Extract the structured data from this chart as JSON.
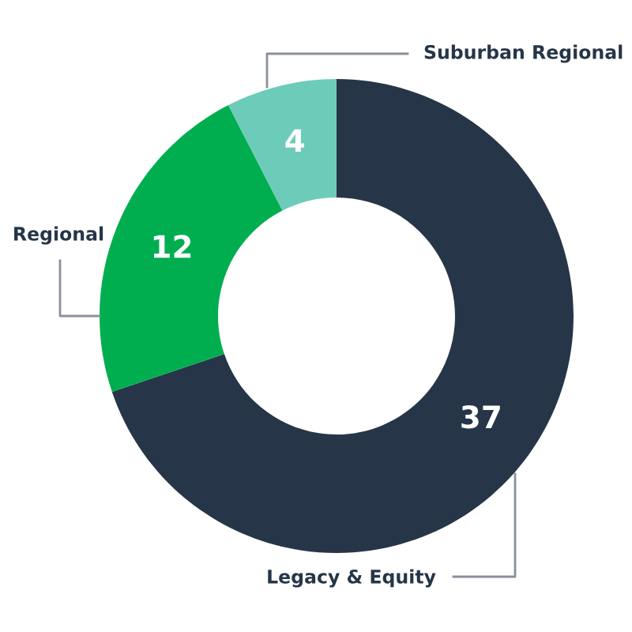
{
  "chart_data": {
    "type": "donut",
    "categories": [
      "Legacy & Equity",
      "Regional",
      "Suburban Regional"
    ],
    "values": [
      37,
      12,
      4
    ],
    "colors": [
      "#263648",
      "#00ae50",
      "#6dcbba"
    ],
    "data_labels": true
  }
}
